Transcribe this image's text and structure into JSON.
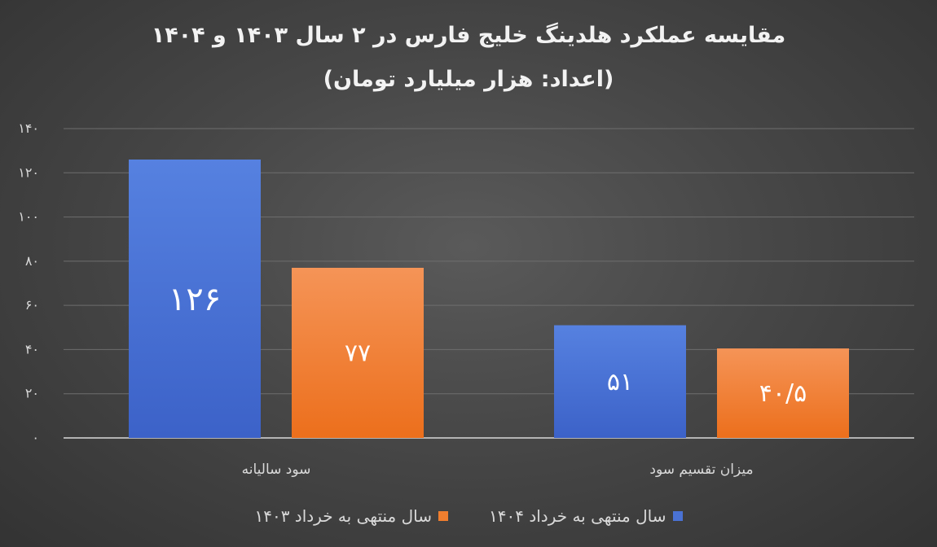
{
  "chart_data": {
    "type": "bar",
    "title": "مقایسه عملکرد هلدینگ خلیج فارس در ۲ سال ۱۴۰۳ و ۱۴۰۴",
    "subtitle": "(اعداد: هزار میلیارد تومان)",
    "categories": [
      "سود سالیانه",
      "میزان تقسیم سود"
    ],
    "series": [
      {
        "name": "سال منتهی به خرداد ۱۴۰۴",
        "values": [
          126,
          51
        ],
        "labels": [
          "۱۲۶",
          "۵۱"
        ],
        "color": "#4a72d4"
      },
      {
        "name": "سال منتهی به خرداد ۱۴۰۳",
        "values": [
          77,
          40.5
        ],
        "labels": [
          "۷۷",
          "۴۰/۵"
        ],
        "color": "#f07e2e"
      }
    ],
    "ylim": [
      0,
      140
    ],
    "yticks": [
      0,
      20,
      40,
      60,
      80,
      100,
      120,
      140
    ],
    "ytick_labels": [
      "۰",
      "۲۰",
      "۴۰",
      "۶۰",
      "۸۰",
      "۱۰۰",
      "۱۲۰",
      "۱۴۰"
    ],
    "grid": true,
    "legend_position": "bottom"
  }
}
